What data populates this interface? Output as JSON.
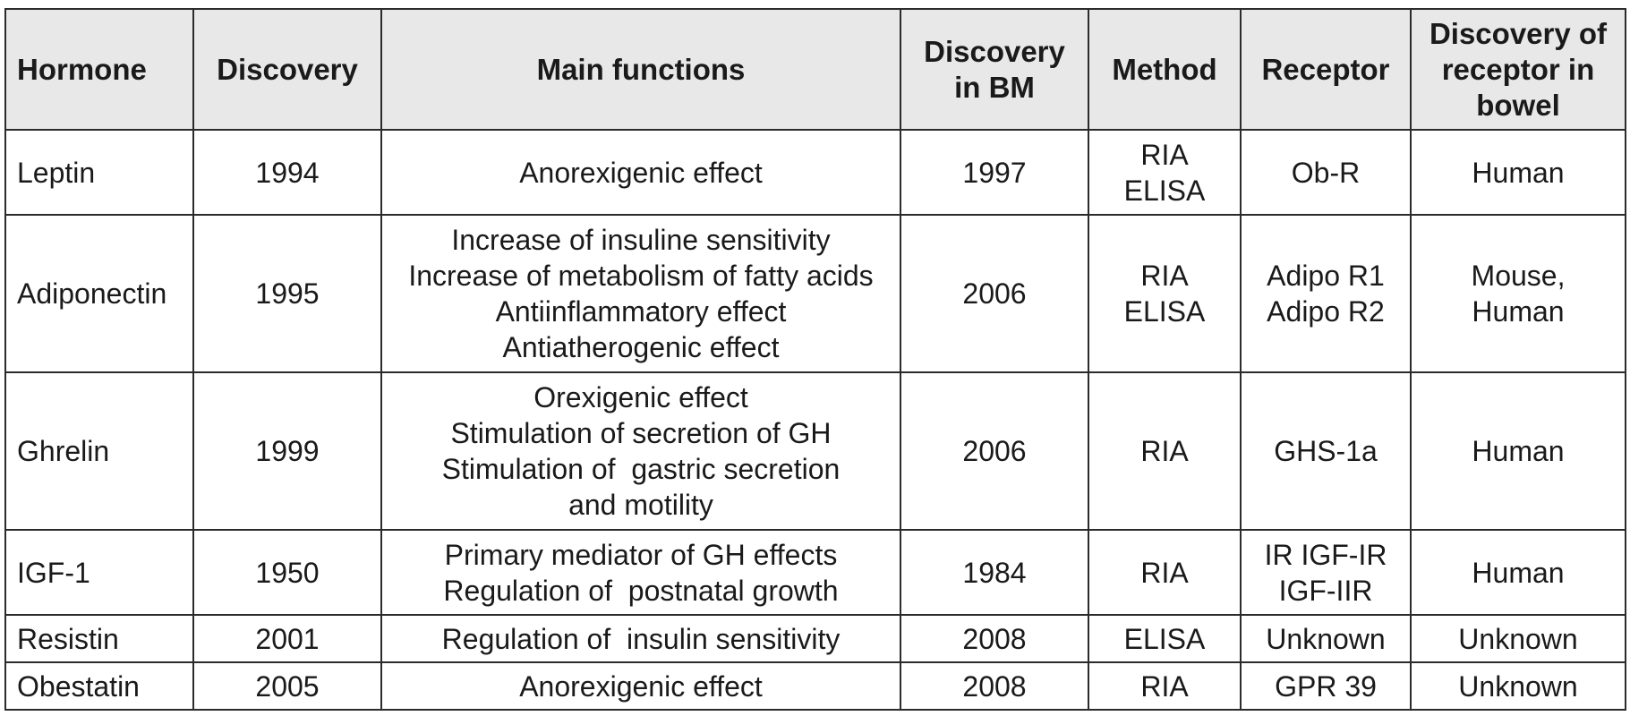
{
  "table": {
    "headers": [
      [
        "Hormone"
      ],
      [
        "Discovery"
      ],
      [
        "Main functions"
      ],
      [
        "Discovery",
        "in BM"
      ],
      [
        "Method"
      ],
      [
        "Receptor"
      ],
      [
        "Discovery of",
        "receptor in",
        "bowel"
      ]
    ],
    "rows": [
      {
        "hormone": "Leptin",
        "discovery": "1994",
        "functions": [
          "Anorexigenic effect"
        ],
        "discovery_bm": "1997",
        "method": [
          "RIA",
          "ELISA"
        ],
        "receptor": [
          "Ob-R"
        ],
        "bowel": [
          "Human"
        ]
      },
      {
        "hormone": "Adiponectin",
        "discovery": "1995",
        "functions": [
          "Increase of insuline sensitivity",
          "Increase of metabolism of fatty acids",
          "Antiinflammatory effect",
          "Antiatherogenic effect"
        ],
        "discovery_bm": "2006",
        "method": [
          "RIA",
          "ELISA"
        ],
        "receptor": [
          "Adipo R1",
          "Adipo R2"
        ],
        "bowel": [
          "Mouse,",
          "Human"
        ]
      },
      {
        "hormone": "Ghrelin",
        "discovery": "1999",
        "functions": [
          "Orexigenic effect",
          "Stimulation of secretion of GH",
          "Stimulation of  gastric secretion",
          "and motility"
        ],
        "discovery_bm": "2006",
        "method": [
          "RIA"
        ],
        "receptor": [
          "GHS-1a"
        ],
        "bowel": [
          "Human"
        ]
      },
      {
        "hormone": "IGF-1",
        "discovery": "1950",
        "functions": [
          "Primary mediator of GH effects",
          "Regulation of  postnatal growth"
        ],
        "discovery_bm": "1984",
        "method": [
          "RIA"
        ],
        "receptor": [
          "IR IGF-IR",
          "IGF-IIR"
        ],
        "bowel": [
          "Human"
        ]
      },
      {
        "hormone": "Resistin",
        "discovery": "2001",
        "functions": [
          "Regulation of  insulin sensitivity"
        ],
        "discovery_bm": "2008",
        "method": [
          "ELISA"
        ],
        "receptor": [
          "Unknown"
        ],
        "bowel": [
          "Unknown"
        ]
      },
      {
        "hormone": "Obestatin",
        "discovery": "2005",
        "functions": [
          "Anorexigenic effect"
        ],
        "discovery_bm": "2008",
        "method": [
          "RIA"
        ],
        "receptor": [
          "GPR 39"
        ],
        "bowel": [
          "Unknown"
        ]
      }
    ]
  }
}
